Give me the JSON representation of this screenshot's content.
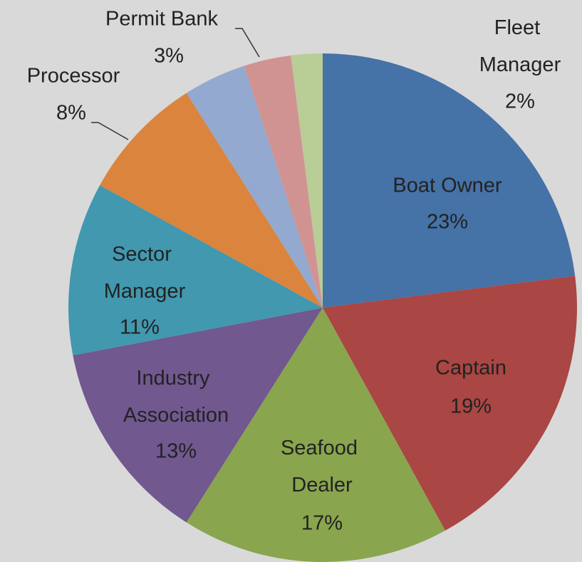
{
  "chart_data": {
    "type": "pie",
    "categories": [
      "Boat Owner",
      "Captain",
      "Seafood Dealer",
      "Industry Association",
      "Sector Manager",
      "Processor",
      null,
      "Permit Bank",
      "Fleet Manager"
    ],
    "values": [
      23,
      19,
      17,
      13,
      11,
      8,
      4,
      3,
      2
    ],
    "value_labels": [
      "23%",
      "19%",
      "17%",
      "13%",
      "11%",
      "8%",
      null,
      "3%",
      "2%"
    ],
    "colors": [
      "#4572a7",
      "#aa4643",
      "#89a54e",
      "#71588f",
      "#4198af",
      "#db843d",
      "#93a9cf",
      "#d19392",
      "#b9cd96"
    ]
  }
}
